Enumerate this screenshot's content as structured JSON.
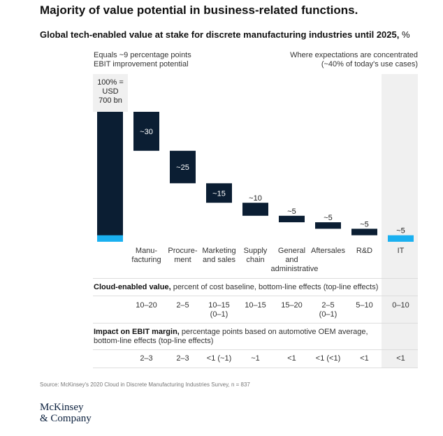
{
  "title": "Majority of value potential in business-related functions.",
  "subtitle_bold": "Global tech-enabled value at stake for discrete manufacturing industries until 2025,",
  "subtitle_unit": " %",
  "left_note": [
    "Equals ~9 percentage points",
    "EBIT improvement potential"
  ],
  "right_note": [
    "Where expectations are concentrated",
    "(~40% of today's use cases)"
  ],
  "total_label": [
    "100% =",
    "USD",
    "700 bn"
  ],
  "colors": {
    "dark": "#0b1e33",
    "accent": "#1ab0f0",
    "highlight": "#f0f0f0"
  },
  "chart_data": {
    "type": "bar",
    "subtype": "waterfall",
    "title": "Global tech-enabled value at stake for discrete manufacturing industries until 2025, %",
    "total": 100,
    "total_accent_portion": 5,
    "categories": [
      "Manu-\nfacturing",
      "Procure-\nment",
      "Marketing\nand sales",
      "Supply\nchain",
      "General\nand\nadministrative",
      "Aftersales",
      "R&D",
      "IT"
    ],
    "values": [
      30,
      25,
      15,
      10,
      5,
      5,
      5,
      5
    ],
    "labels": [
      "~30",
      "~25",
      "~15",
      "~10",
      "~5",
      "~5",
      "~5",
      "~5"
    ],
    "highlighted": [
      "IT"
    ],
    "ylim": [
      0,
      100
    ]
  },
  "cloud": {
    "heading_bold": "Cloud-enabled value,",
    "heading": " percent of cost baseline, bottom-line effects (top-line effects)",
    "values": [
      "10–20",
      "2–5",
      "10–15\n(0–1)",
      "10–15",
      "15–20",
      "2–5\n(0–1)",
      "5–10",
      "0–10"
    ]
  },
  "ebit": {
    "heading_bold": "Impact on EBIT margin,",
    "heading": " percentage points based on automotive OEM average,",
    "heading2": "bottom-line effects (top-line effects)",
    "values": [
      "2–3",
      "2–3",
      "<1 (~1)",
      "~1",
      "<1",
      "<1 (<1)",
      "<1",
      "<1"
    ]
  },
  "source": "Source: McKinsey's 2020 Cloud in Discrete Manufacturing Industries Survey, n = 837",
  "logo": [
    "McKinsey",
    "& Company"
  ]
}
